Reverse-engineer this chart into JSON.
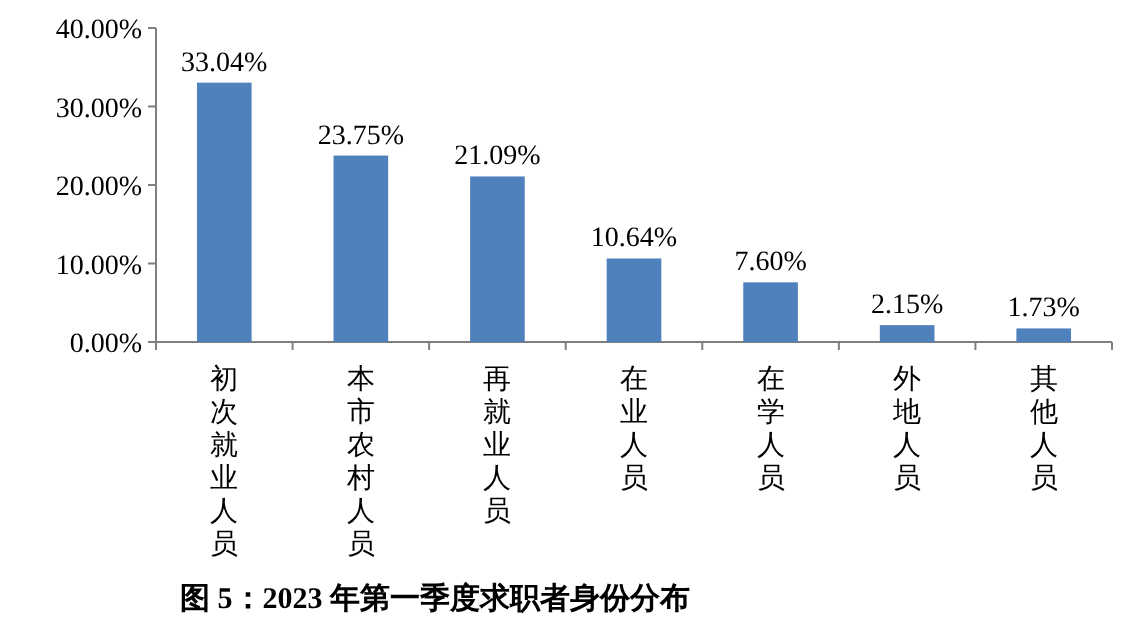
{
  "chart_data": {
    "type": "bar",
    "title": "图 5：2023 年第一季度求职者身份分布",
    "categories": [
      "初次就业人员",
      "本市农村人员",
      "再就业人员",
      "在业人员",
      "在学人员",
      "外地人员",
      "其他人员"
    ],
    "values": [
      33.04,
      23.75,
      21.09,
      10.64,
      7.6,
      2.15,
      1.73
    ],
    "value_labels": [
      "33.04%",
      "23.75%",
      "21.09%",
      "10.64%",
      "7.60%",
      "2.15%",
      "1.73%"
    ],
    "color": "#4f81bd",
    "ylim": [
      0,
      40
    ],
    "yticks": [
      {
        "value": 0,
        "label": "0.00%"
      },
      {
        "value": 10,
        "label": "10.00%"
      },
      {
        "value": 20,
        "label": "20.00%"
      },
      {
        "value": 30,
        "label": "30.00%"
      },
      {
        "value": 40,
        "label": "40.00%"
      }
    ]
  }
}
